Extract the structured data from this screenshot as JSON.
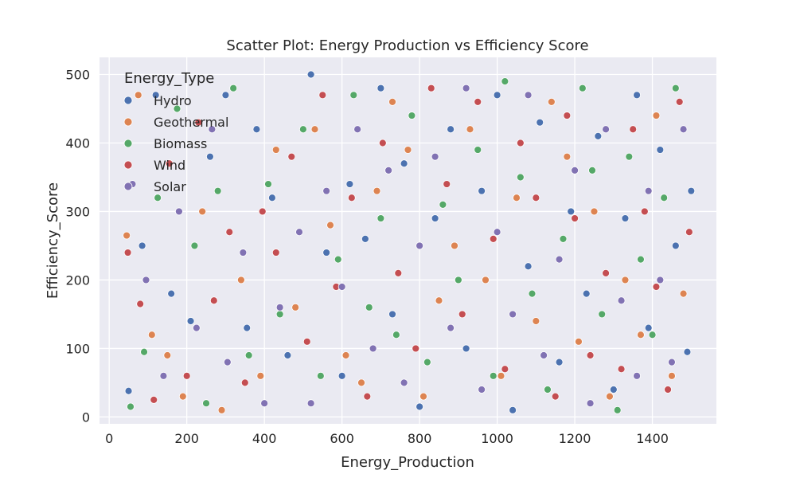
{
  "chart_data": {
    "type": "scatter",
    "title": "Scatter Plot: Energy Production vs Efficiency Score",
    "xlabel": "Energy_Production",
    "ylabel": "Efficiency_Score",
    "xlim": [
      -25,
      1565
    ],
    "ylim": [
      -10,
      525
    ],
    "xticks": [
      0,
      200,
      400,
      600,
      800,
      1000,
      1200,
      1400
    ],
    "yticks": [
      0,
      100,
      200,
      300,
      400,
      500
    ],
    "grid": true,
    "legend": {
      "title": "Energy_Type",
      "placement": "top-left"
    },
    "series": [
      {
        "name": "Hydro",
        "color": "#4c72b0",
        "points": [
          [
            50,
            38
          ],
          [
            85,
            250
          ],
          [
            120,
            470
          ],
          [
            160,
            180
          ],
          [
            210,
            140
          ],
          [
            260,
            380
          ],
          [
            300,
            470
          ],
          [
            355,
            130
          ],
          [
            380,
            420
          ],
          [
            420,
            320
          ],
          [
            460,
            90
          ],
          [
            520,
            500
          ],
          [
            560,
            240
          ],
          [
            600,
            60
          ],
          [
            620,
            340
          ],
          [
            660,
            260
          ],
          [
            700,
            480
          ],
          [
            730,
            150
          ],
          [
            760,
            370
          ],
          [
            800,
            15
          ],
          [
            840,
            290
          ],
          [
            880,
            420
          ],
          [
            920,
            100
          ],
          [
            960,
            330
          ],
          [
            1000,
            470
          ],
          [
            1040,
            10
          ],
          [
            1080,
            220
          ],
          [
            1110,
            430
          ],
          [
            1160,
            80
          ],
          [
            1190,
            300
          ],
          [
            1230,
            180
          ],
          [
            1260,
            410
          ],
          [
            1300,
            40
          ],
          [
            1330,
            290
          ],
          [
            1360,
            470
          ],
          [
            1390,
            130
          ],
          [
            1420,
            390
          ],
          [
            1460,
            250
          ],
          [
            1490,
            95
          ],
          [
            1500,
            330
          ]
        ]
      },
      {
        "name": "Geothermal",
        "color": "#dd8452",
        "points": [
          [
            45,
            265
          ],
          [
            75,
            470
          ],
          [
            110,
            120
          ],
          [
            150,
            90
          ],
          [
            190,
            30
          ],
          [
            240,
            300
          ],
          [
            290,
            10
          ],
          [
            340,
            200
          ],
          [
            390,
            60
          ],
          [
            430,
            390
          ],
          [
            480,
            160
          ],
          [
            530,
            420
          ],
          [
            570,
            280
          ],
          [
            610,
            90
          ],
          [
            650,
            50
          ],
          [
            690,
            330
          ],
          [
            730,
            460
          ],
          [
            770,
            390
          ],
          [
            810,
            30
          ],
          [
            850,
            170
          ],
          [
            890,
            250
          ],
          [
            930,
            420
          ],
          [
            970,
            200
          ],
          [
            1010,
            60
          ],
          [
            1050,
            320
          ],
          [
            1100,
            140
          ],
          [
            1140,
            460
          ],
          [
            1180,
            380
          ],
          [
            1210,
            110
          ],
          [
            1250,
            300
          ],
          [
            1290,
            30
          ],
          [
            1330,
            200
          ],
          [
            1370,
            120
          ],
          [
            1410,
            440
          ],
          [
            1450,
            60
          ],
          [
            1480,
            180
          ]
        ]
      },
      {
        "name": "Biomass",
        "color": "#55a868",
        "points": [
          [
            55,
            15
          ],
          [
            90,
            95
          ],
          [
            125,
            320
          ],
          [
            175,
            450
          ],
          [
            220,
            250
          ],
          [
            250,
            20
          ],
          [
            280,
            330
          ],
          [
            320,
            480
          ],
          [
            360,
            90
          ],
          [
            410,
            340
          ],
          [
            440,
            150
          ],
          [
            500,
            420
          ],
          [
            545,
            60
          ],
          [
            590,
            230
          ],
          [
            630,
            470
          ],
          [
            670,
            160
          ],
          [
            700,
            290
          ],
          [
            740,
            120
          ],
          [
            780,
            440
          ],
          [
            820,
            80
          ],
          [
            860,
            310
          ],
          [
            900,
            200
          ],
          [
            950,
            390
          ],
          [
            990,
            60
          ],
          [
            1020,
            490
          ],
          [
            1060,
            350
          ],
          [
            1090,
            180
          ],
          [
            1130,
            40
          ],
          [
            1170,
            260
          ],
          [
            1220,
            480
          ],
          [
            1245,
            360
          ],
          [
            1270,
            150
          ],
          [
            1310,
            10
          ],
          [
            1340,
            380
          ],
          [
            1370,
            230
          ],
          [
            1400,
            120
          ],
          [
            1430,
            320
          ],
          [
            1460,
            480
          ]
        ]
      },
      {
        "name": "Wind",
        "color": "#c44e52",
        "points": [
          [
            48,
            240
          ],
          [
            80,
            165
          ],
          [
            115,
            25
          ],
          [
            155,
            370
          ],
          [
            200,
            60
          ],
          [
            230,
            430
          ],
          [
            270,
            170
          ],
          [
            310,
            270
          ],
          [
            350,
            50
          ],
          [
            395,
            300
          ],
          [
            430,
            240
          ],
          [
            470,
            380
          ],
          [
            510,
            110
          ],
          [
            550,
            470
          ],
          [
            585,
            190
          ],
          [
            625,
            320
          ],
          [
            665,
            30
          ],
          [
            705,
            400
          ],
          [
            745,
            210
          ],
          [
            790,
            100
          ],
          [
            830,
            480
          ],
          [
            870,
            340
          ],
          [
            910,
            150
          ],
          [
            950,
            460
          ],
          [
            990,
            260
          ],
          [
            1020,
            70
          ],
          [
            1060,
            400
          ],
          [
            1100,
            320
          ],
          [
            1150,
            30
          ],
          [
            1180,
            440
          ],
          [
            1200,
            290
          ],
          [
            1240,
            90
          ],
          [
            1280,
            210
          ],
          [
            1320,
            70
          ],
          [
            1350,
            420
          ],
          [
            1380,
            300
          ],
          [
            1410,
            190
          ],
          [
            1440,
            40
          ],
          [
            1470,
            460
          ],
          [
            1495,
            270
          ]
        ]
      },
      {
        "name": "Solar",
        "color": "#8172b3",
        "points": [
          [
            60,
            340
          ],
          [
            95,
            200
          ],
          [
            140,
            60
          ],
          [
            180,
            300
          ],
          [
            225,
            130
          ],
          [
            265,
            420
          ],
          [
            305,
            80
          ],
          [
            345,
            240
          ],
          [
            400,
            20
          ],
          [
            440,
            160
          ],
          [
            490,
            270
          ],
          [
            520,
            20
          ],
          [
            560,
            330
          ],
          [
            600,
            190
          ],
          [
            640,
            420
          ],
          [
            680,
            100
          ],
          [
            720,
            360
          ],
          [
            760,
            50
          ],
          [
            800,
            250
          ],
          [
            840,
            380
          ],
          [
            880,
            130
          ],
          [
            920,
            480
          ],
          [
            960,
            40
          ],
          [
            1000,
            270
          ],
          [
            1040,
            150
          ],
          [
            1080,
            470
          ],
          [
            1120,
            90
          ],
          [
            1160,
            230
          ],
          [
            1200,
            360
          ],
          [
            1240,
            20
          ],
          [
            1280,
            420
          ],
          [
            1320,
            170
          ],
          [
            1360,
            60
          ],
          [
            1390,
            330
          ],
          [
            1420,
            200
          ],
          [
            1450,
            80
          ],
          [
            1480,
            420
          ]
        ]
      }
    ]
  }
}
